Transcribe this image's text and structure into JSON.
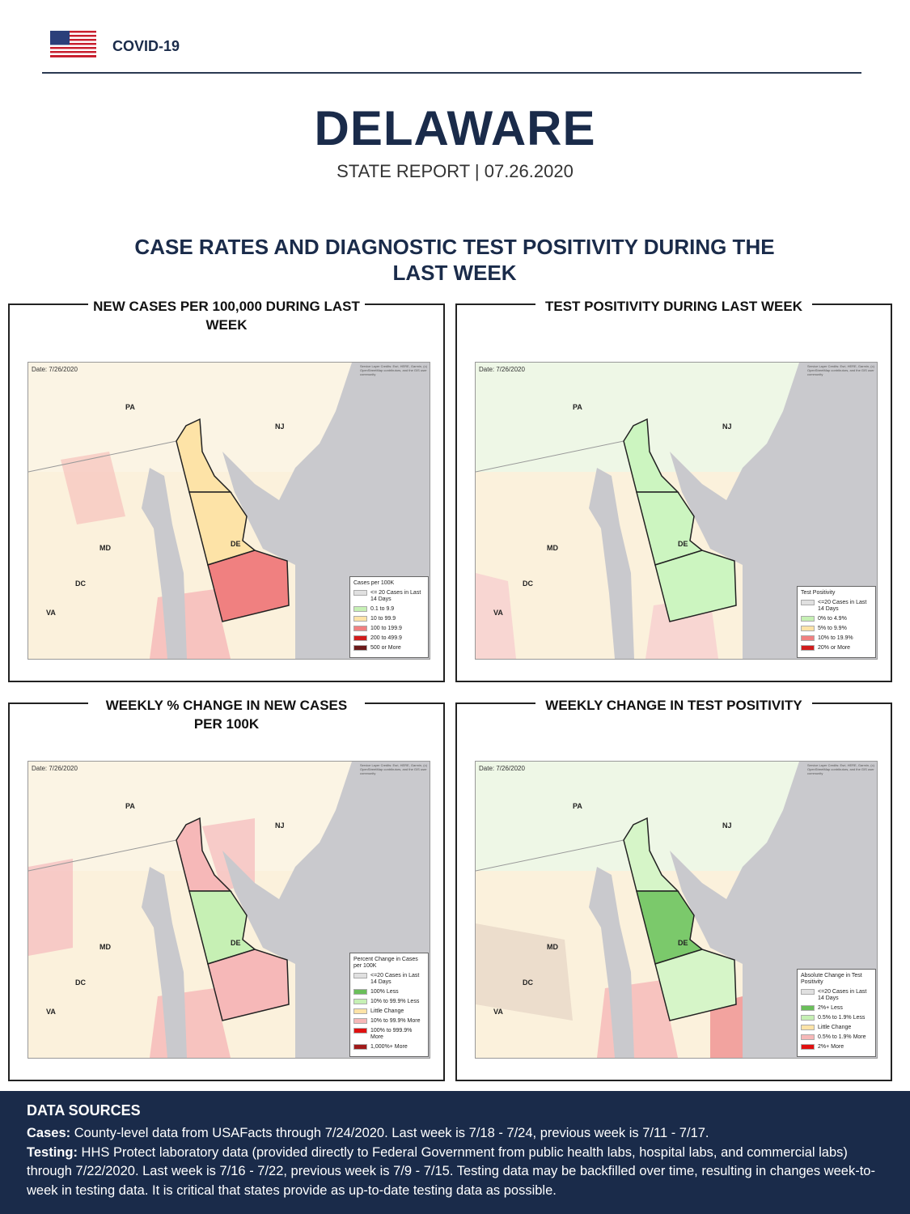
{
  "header": {
    "label": "COVID-19",
    "state": "DELAWARE",
    "subtitle": "STATE REPORT | 07.26.2020"
  },
  "section_title": "CASE RATES AND DIAGNOSTIC TEST POSITIVITY DURING THE LAST WEEK",
  "panels": [
    {
      "title": "NEW CASES PER 100,000 DURING LAST WEEK",
      "date": "Date: 7/26/2020",
      "credits": "Service Layer Credits: Esri, HERE, Garmin, (c) OpenStreetMap contributors, and the GIS user community",
      "labels": [
        "PA",
        "NJ",
        "MD",
        "DE",
        "DC",
        "VA"
      ],
      "legend": {
        "title": "Cases per 100K",
        "items": [
          {
            "label": "<= 20 Cases in Last 14 Days",
            "color": "#e0e0e0"
          },
          {
            "label": "0.1 to 9.9",
            "color": "#c6f0b4"
          },
          {
            "label": "10 to 99.9",
            "color": "#fde3a7"
          },
          {
            "label": "100 to 199.9",
            "color": "#f08080"
          },
          {
            "label": "200 to 499.9",
            "color": "#d01c1c"
          },
          {
            "label": "500 or More",
            "color": "#6b1a1a"
          }
        ]
      }
    },
    {
      "title": "TEST POSITIVITY DURING LAST WEEK",
      "date": "Date: 7/26/2020",
      "credits": "Service Layer Credits: Esri, HERE, Garmin, (c) OpenStreetMap contributors, and the GIS user community",
      "labels": [
        "PA",
        "NJ",
        "MD",
        "DE",
        "DC",
        "VA"
      ],
      "legend": {
        "title": "Test Positivity",
        "items": [
          {
            "label": "<=20 Cases in Last 14 Days",
            "color": "#e0e0e0"
          },
          {
            "label": "0% to 4.9%",
            "color": "#c6f0b4"
          },
          {
            "label": "5% to 9.9%",
            "color": "#fde3a7"
          },
          {
            "label": "10% to 19.9%",
            "color": "#f08080"
          },
          {
            "label": "20% or More",
            "color": "#d01c1c"
          }
        ]
      }
    },
    {
      "title": "WEEKLY % CHANGE IN NEW CASES PER 100K",
      "date": "Date: 7/26/2020",
      "credits": "Service Layer Credits: Esri, HERE, Garmin, (c) OpenStreetMap contributors, and the GIS user community",
      "labels": [
        "PA",
        "NJ",
        "MD",
        "DE",
        "DC",
        "VA"
      ],
      "legend": {
        "title": "Percent Change in Cases per 100K",
        "items": [
          {
            "label": "<=20 Cases in Last 14 Days",
            "color": "#e0e0e0"
          },
          {
            "label": "100% Less",
            "color": "#6abf5a"
          },
          {
            "label": "10% to 99.9% Less",
            "color": "#c6f0b4"
          },
          {
            "label": "Little Change",
            "color": "#fde3a7"
          },
          {
            "label": "10% to 99.9% More",
            "color": "#f6b8b8"
          },
          {
            "label": "100% to 999.9% More",
            "color": "#e01010"
          },
          {
            "label": "1,000%+ More",
            "color": "#a01a1a"
          }
        ]
      }
    },
    {
      "title": "WEEKLY CHANGE IN TEST POSITIVITY",
      "date": "Date: 7/26/2020",
      "credits": "Service Layer Credits: Esri, HERE, Garmin, (c) OpenStreetMap contributors, and the GIS user community",
      "labels": [
        "PA",
        "NJ",
        "MD",
        "DE",
        "DC",
        "VA"
      ],
      "legend": {
        "title": "Absolute Change in Test Positivity",
        "items": [
          {
            "label": "<=20 Cases in Last 14 Days",
            "color": "#e0e0e0"
          },
          {
            "label": "2%+ Less",
            "color": "#6abf5a"
          },
          {
            "label": "0.5% to 1.9% Less",
            "color": "#c6f0b4"
          },
          {
            "label": "Little Change",
            "color": "#fde3a7"
          },
          {
            "label": "0.5% to 1.9% More",
            "color": "#f6b8b8"
          },
          {
            "label": "2%+ More",
            "color": "#e01010"
          }
        ]
      }
    }
  ],
  "data_sources": {
    "title": "DATA SOURCES",
    "cases": {
      "label": "Cases:",
      "text": "County-level data from USAFacts through 7/24/2020. Last week is 7/18 - 7/24, previous week is 7/11 - 7/17."
    },
    "testing": {
      "label": "Testing:",
      "text": "HHS Protect laboratory data (provided directly to Federal Government from public health labs, hospital labs, and commercial labs) through 7/22/2020. Last week is 7/16 - 7/22, previous week is 7/9 - 7/15. Testing data may be backfilled over time, resulting in changes week-to-week in testing data. It is critical that states provide as up-to-date testing data as possible."
    }
  }
}
